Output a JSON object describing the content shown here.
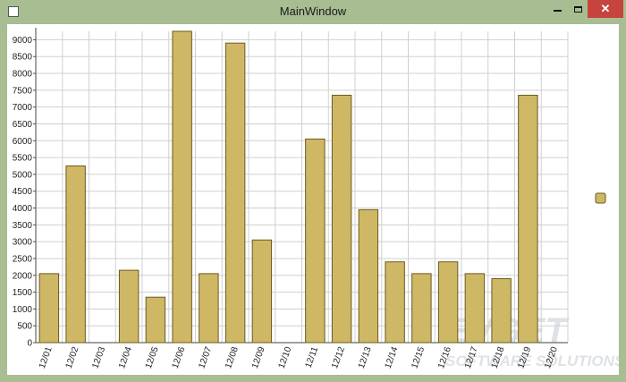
{
  "window": {
    "title": "MainWindow",
    "app_icon": "window-icon",
    "controls": {
      "minimize_icon": "minimize-icon",
      "maximize_icon": "maximize-icon",
      "close_icon": "close-icon",
      "close_glyph": "✕"
    }
  },
  "colors": {
    "window_frame": "#a8bd92",
    "bar_fill": "#cfb865",
    "bar_stroke": "#6b5a1e",
    "grid": "#d0d0d0",
    "weekend_label": "#e02020",
    "close_button": "#c7433d"
  },
  "watermark": {
    "line1": "EVGET",
    "line2": "SOFTWARE SOLUTIONS"
  },
  "chart_data": {
    "type": "bar",
    "categories": [
      "12/01",
      "12/02",
      "12/03",
      "12/04",
      "12/05",
      "12/06",
      "12/07",
      "12/08",
      "12/09",
      "12/10",
      "12/11",
      "12/12",
      "12/13",
      "12/14",
      "12/15",
      "12/16",
      "12/17",
      "12/18",
      "12/19",
      "12/20"
    ],
    "highlighted_categories": [
      "12/03",
      "12/10",
      "12/20"
    ],
    "values": [
      2050,
      5250,
      0,
      2150,
      1350,
      9250,
      2050,
      8900,
      3050,
      0,
      6050,
      7350,
      3950,
      2400,
      2050,
      2400,
      2050,
      1900,
      7350,
      0
    ],
    "ylim": [
      0,
      9250
    ],
    "yticks": [
      0,
      500,
      1000,
      1500,
      2000,
      2500,
      3000,
      3500,
      4000,
      4500,
      5000,
      5500,
      6000,
      6500,
      7000,
      7500,
      8000,
      8500,
      9000
    ],
    "grid": true,
    "legend": "right",
    "legend_marker": "square"
  }
}
